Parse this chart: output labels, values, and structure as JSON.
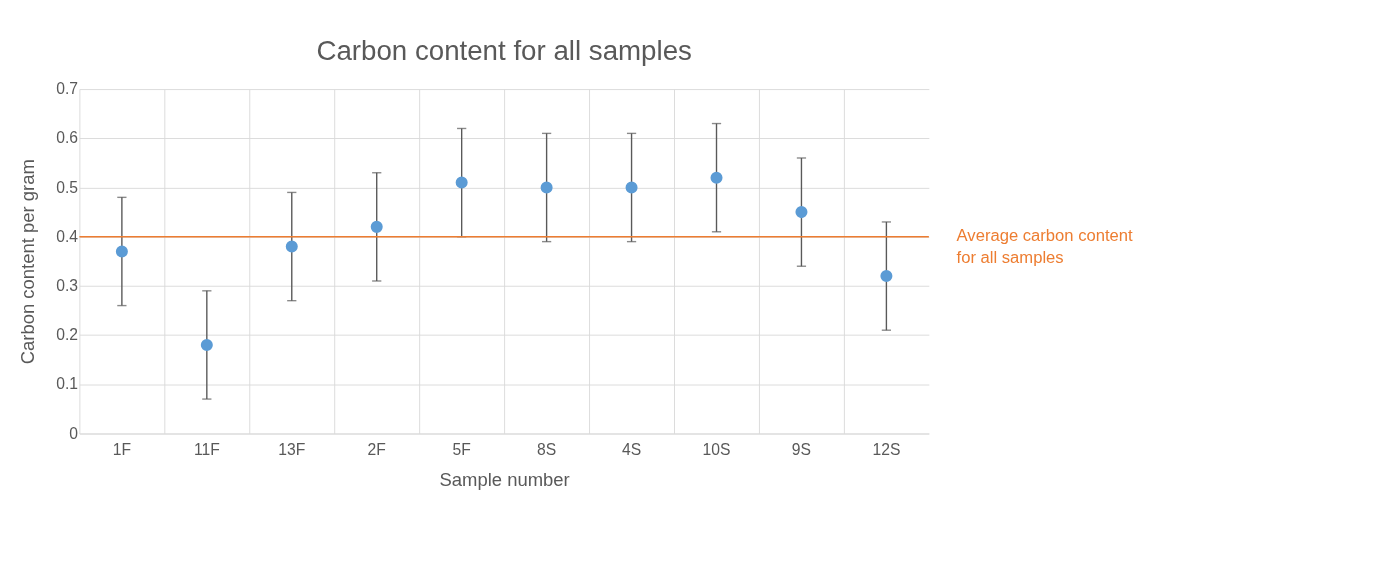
{
  "chart_data": {
    "type": "scatter",
    "title": "Carbon content for all samples",
    "xlabel": "Sample number",
    "ylabel": "Carbon content per gram",
    "categories": [
      "1F",
      "11F",
      "13F",
      "2F",
      "5F",
      "8S",
      "4S",
      "10S",
      "9S",
      "12S"
    ],
    "series": [
      {
        "color": "#5b9bd5",
        "values": [
          0.37,
          0.18,
          0.38,
          0.42,
          0.51,
          0.5,
          0.5,
          0.52,
          0.45,
          0.32
        ],
        "errors": [
          0.11,
          0.11,
          0.11,
          0.11,
          0.11,
          0.11,
          0.11,
          0.11,
          0.11,
          0.11
        ]
      }
    ],
    "ylim": [
      0,
      0.7
    ],
    "yticks": [
      0,
      0.1,
      0.2,
      0.3,
      0.4,
      0.5,
      0.6,
      0.7
    ],
    "grid": true,
    "marker": "circle",
    "ref_lines": [
      {
        "axis": "y",
        "value": 0.4,
        "label": "Average carbon content\nfor all samples",
        "color": "#ed7d31"
      }
    ]
  }
}
